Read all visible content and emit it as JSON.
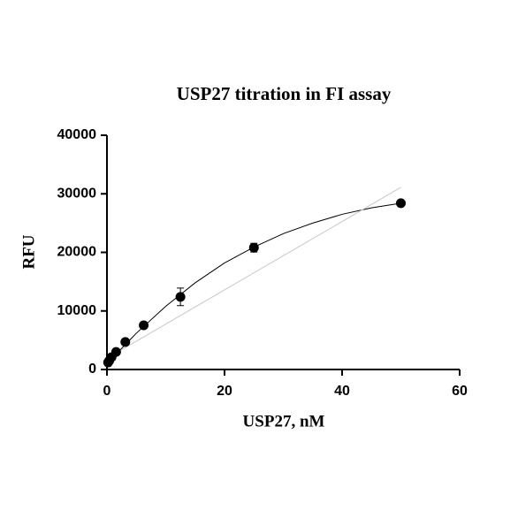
{
  "chart_data": {
    "type": "scatter",
    "title": "USP27 titration in FI assay",
    "x_label": "USP27, nM",
    "y_label": "RFU",
    "xlim": [
      0,
      60
    ],
    "xticks": [
      0,
      20,
      40,
      60
    ],
    "ylim": [
      0,
      40000
    ],
    "yticks": [
      0,
      10000,
      20000,
      30000,
      40000
    ],
    "series": [
      {
        "color": "#000000",
        "x": [
          0.195,
          0.39,
          0.78,
          1.56,
          3.125,
          6.25,
          12.5,
          25,
          50
        ],
        "values": [
          1200,
          1500,
          2100,
          3000,
          4700,
          7550,
          12400,
          20800,
          28400
        ],
        "errors": [
          200,
          200,
          200,
          200,
          250,
          300,
          1500,
          750,
          300
        ]
      }
    ],
    "curves": [
      {
        "color": "#000000",
        "x": [
          0,
          5,
          10,
          15,
          20,
          25,
          30,
          35,
          40,
          45,
          50
        ],
        "values": [
          1000,
          6200,
          10800,
          14800,
          18200,
          20900,
          23200,
          25000,
          26500,
          27600,
          28400
        ]
      },
      {
        "color": "#c8c8c8",
        "x": [
          1,
          50
        ],
        "values": [
          2500,
          31100
        ]
      }
    ]
  }
}
